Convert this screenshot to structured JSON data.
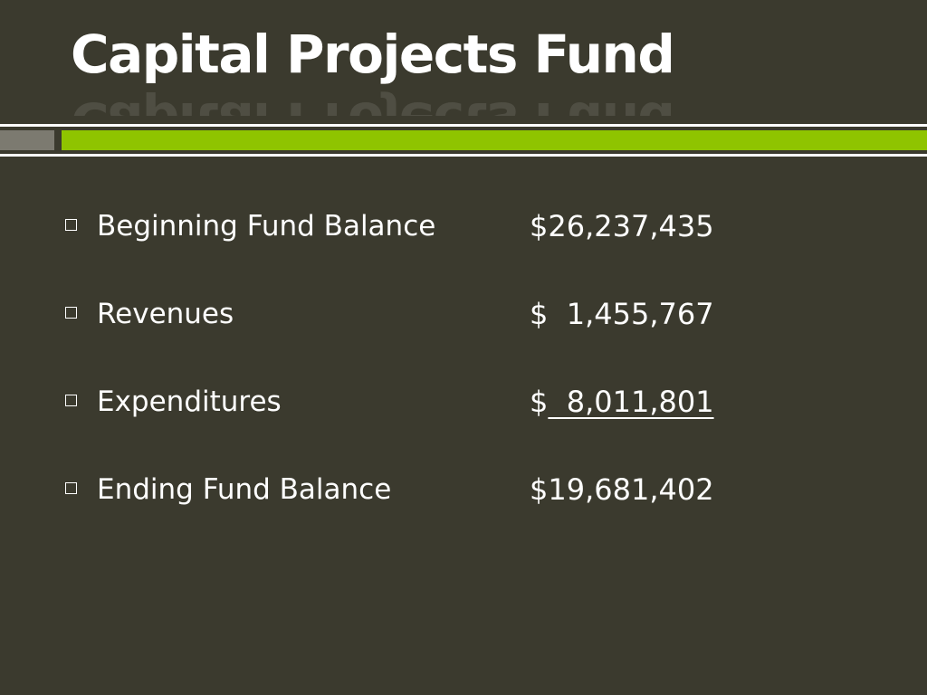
{
  "slide": {
    "title": "Capital Projects Fund",
    "items": [
      {
        "label": "Beginning Fund Balance",
        "currency": "$",
        "amount": "26,237,435"
      },
      {
        "label": "Revenues",
        "currency": "$",
        "amount": "  1,455,767"
      },
      {
        "label": "Expenditures",
        "currency": "$",
        "amount": "  8,011,801"
      },
      {
        "label": "Ending Fund Balance",
        "currency": "$",
        "amount": "19,681,402"
      }
    ]
  },
  "colors": {
    "background": "#3b3a2e",
    "accent_green": "#8fc400",
    "accent_gray": "#7c7a70",
    "text": "#ffffff"
  }
}
